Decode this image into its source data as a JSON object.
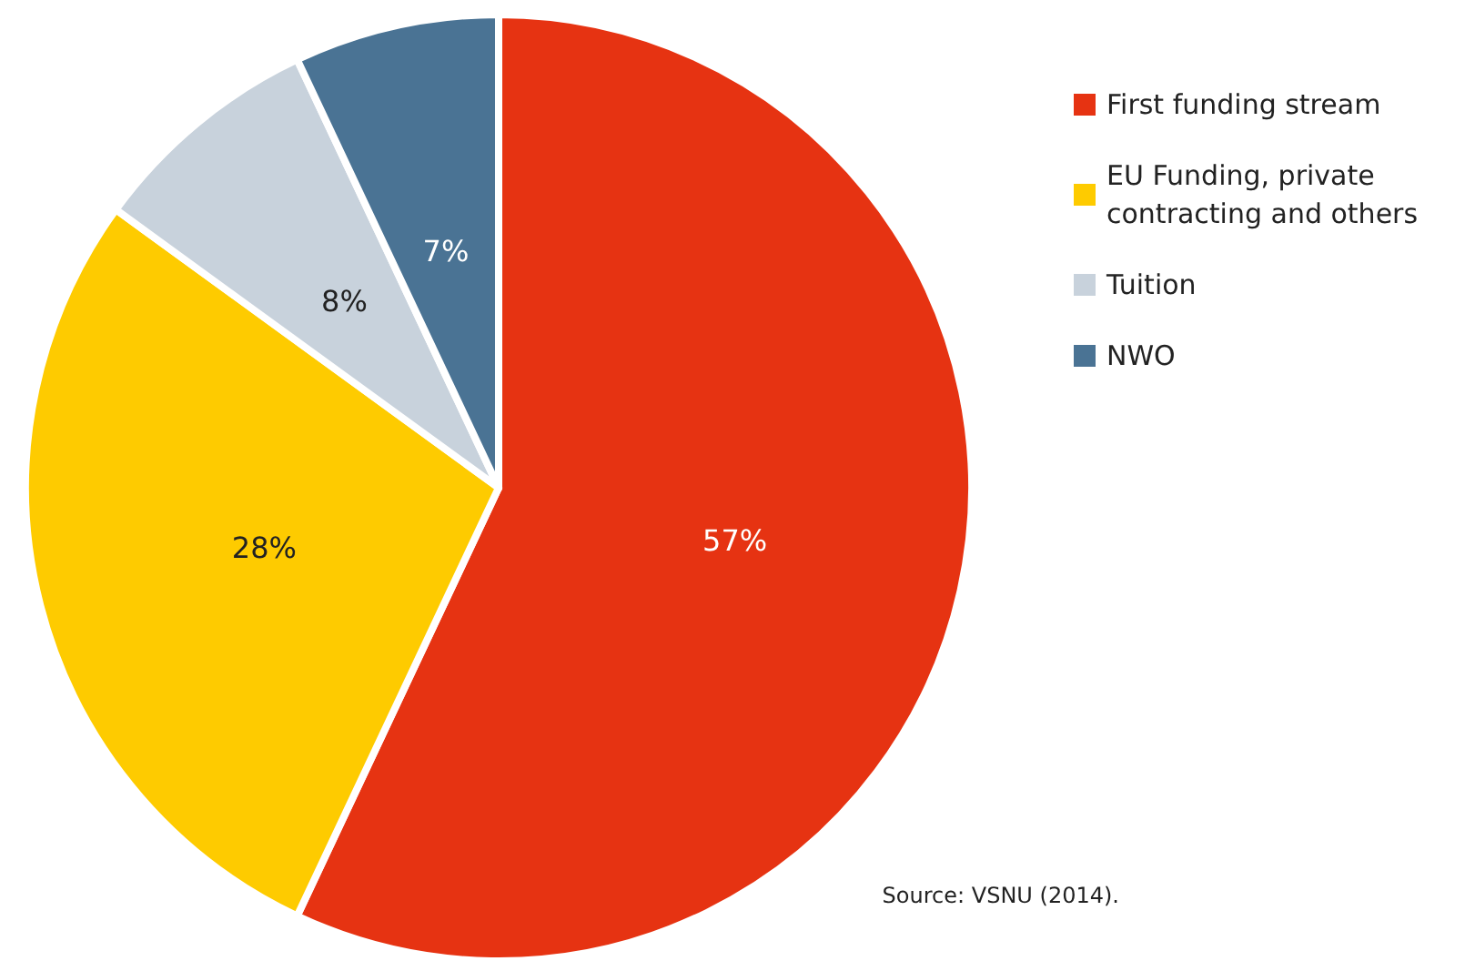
{
  "chart_data": {
    "type": "pie",
    "categories": [
      "First funding stream",
      "EU Funding, private contracting and others",
      "Tuition",
      "NWO"
    ],
    "values": [
      57,
      28,
      8,
      7
    ],
    "colors": [
      "#e63312",
      "#fecb00",
      "#c8d2dc",
      "#4a7394"
    ],
    "value_labels": [
      "57%",
      "28%",
      "8%",
      "7%"
    ],
    "legend": "top right",
    "annotations": [
      "Source: VSNU (2014)."
    ]
  }
}
